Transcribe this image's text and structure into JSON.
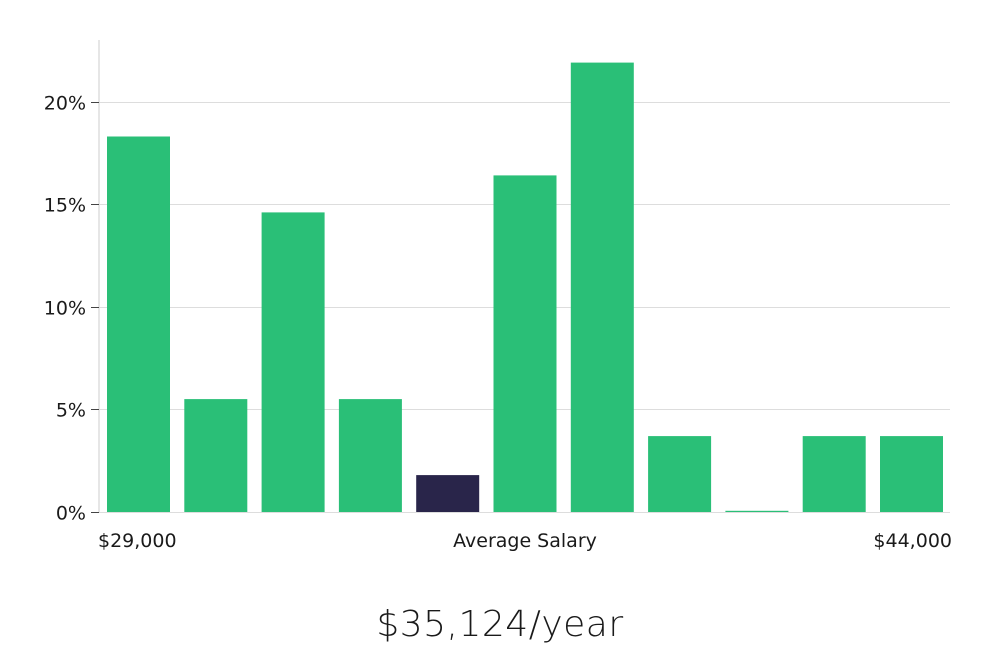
{
  "chart_data": {
    "type": "bar",
    "y_ticks": [
      "0%",
      "5%",
      "10%",
      "15%",
      "20%"
    ],
    "ylim": [
      0,
      23
    ],
    "grid": true,
    "x_labels": {
      "left": "$29,000",
      "center": "Average Salary",
      "right": "$44,000"
    },
    "values": [
      18.3,
      5.5,
      14.6,
      5.5,
      1.8,
      16.4,
      21.9,
      3.7,
      0,
      3.7,
      3.7
    ],
    "highlight_index": 4
  },
  "colors": {
    "bar": "#2abf77",
    "highlight": "#29254a",
    "grid": "#dddddd",
    "axis": "#cccccc"
  },
  "salary": {
    "value": "$35,124/year"
  }
}
